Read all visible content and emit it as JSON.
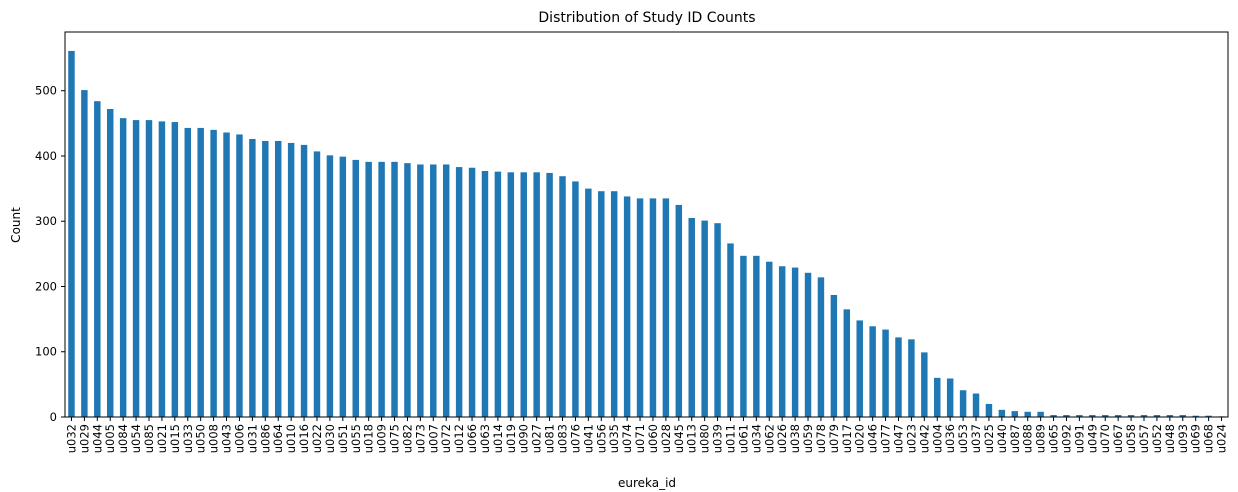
{
  "chart_data": {
    "type": "bar",
    "title": "Distribution of Study ID Counts",
    "xlabel": "eureka_id",
    "ylabel": "Count",
    "ylim": [
      0,
      590
    ],
    "yticks": [
      0,
      100,
      200,
      300,
      400,
      500
    ],
    "grid": false,
    "legend": "none",
    "bar_color": "#1f77b4",
    "categories": [
      "u032",
      "u029",
      "u044",
      "u005",
      "u084",
      "u054",
      "u085",
      "u021",
      "u015",
      "u033",
      "u050",
      "u008",
      "u043",
      "u006",
      "u031",
      "u086",
      "u064",
      "u010",
      "u016",
      "u022",
      "u030",
      "u051",
      "u055",
      "u018",
      "u009",
      "u075",
      "u082",
      "u073",
      "u007",
      "u072",
      "u012",
      "u066",
      "u063",
      "u014",
      "u019",
      "u090",
      "u027",
      "u081",
      "u083",
      "u076",
      "u041",
      "u056",
      "u035",
      "u074",
      "u071",
      "u060",
      "u028",
      "u045",
      "u013",
      "u080",
      "u039",
      "u011",
      "u061",
      "u034",
      "u062",
      "u026",
      "u038",
      "u059",
      "u078",
      "u079",
      "u017",
      "u020",
      "u046",
      "u077",
      "u047",
      "u023",
      "u042",
      "u004",
      "u036",
      "u053",
      "u037",
      "u025",
      "u040",
      "u087",
      "u088",
      "u089",
      "u065",
      "u092",
      "u091",
      "u049",
      "u070",
      "u067",
      "u058",
      "u057",
      "u052",
      "u048",
      "u093",
      "u069",
      "u068",
      "u024"
    ],
    "values": [
      561,
      501,
      484,
      472,
      458,
      455,
      455,
      453,
      452,
      443,
      443,
      440,
      436,
      433,
      426,
      423,
      423,
      420,
      417,
      407,
      401,
      399,
      394,
      391,
      391,
      391,
      389,
      387,
      387,
      387,
      383,
      382,
      377,
      376,
      375,
      375,
      375,
      374,
      369,
      361,
      350,
      346,
      346,
      338,
      335,
      335,
      335,
      325,
      305,
      301,
      297,
      266,
      247,
      247,
      238,
      231,
      229,
      221,
      214,
      187,
      165,
      148,
      139,
      134,
      122,
      119,
      99,
      60,
      59,
      41,
      36,
      20,
      11,
      9,
      8,
      8,
      3,
      3,
      3,
      3,
      3,
      3,
      3,
      3,
      3,
      3,
      3,
      2,
      2,
      1
    ]
  }
}
